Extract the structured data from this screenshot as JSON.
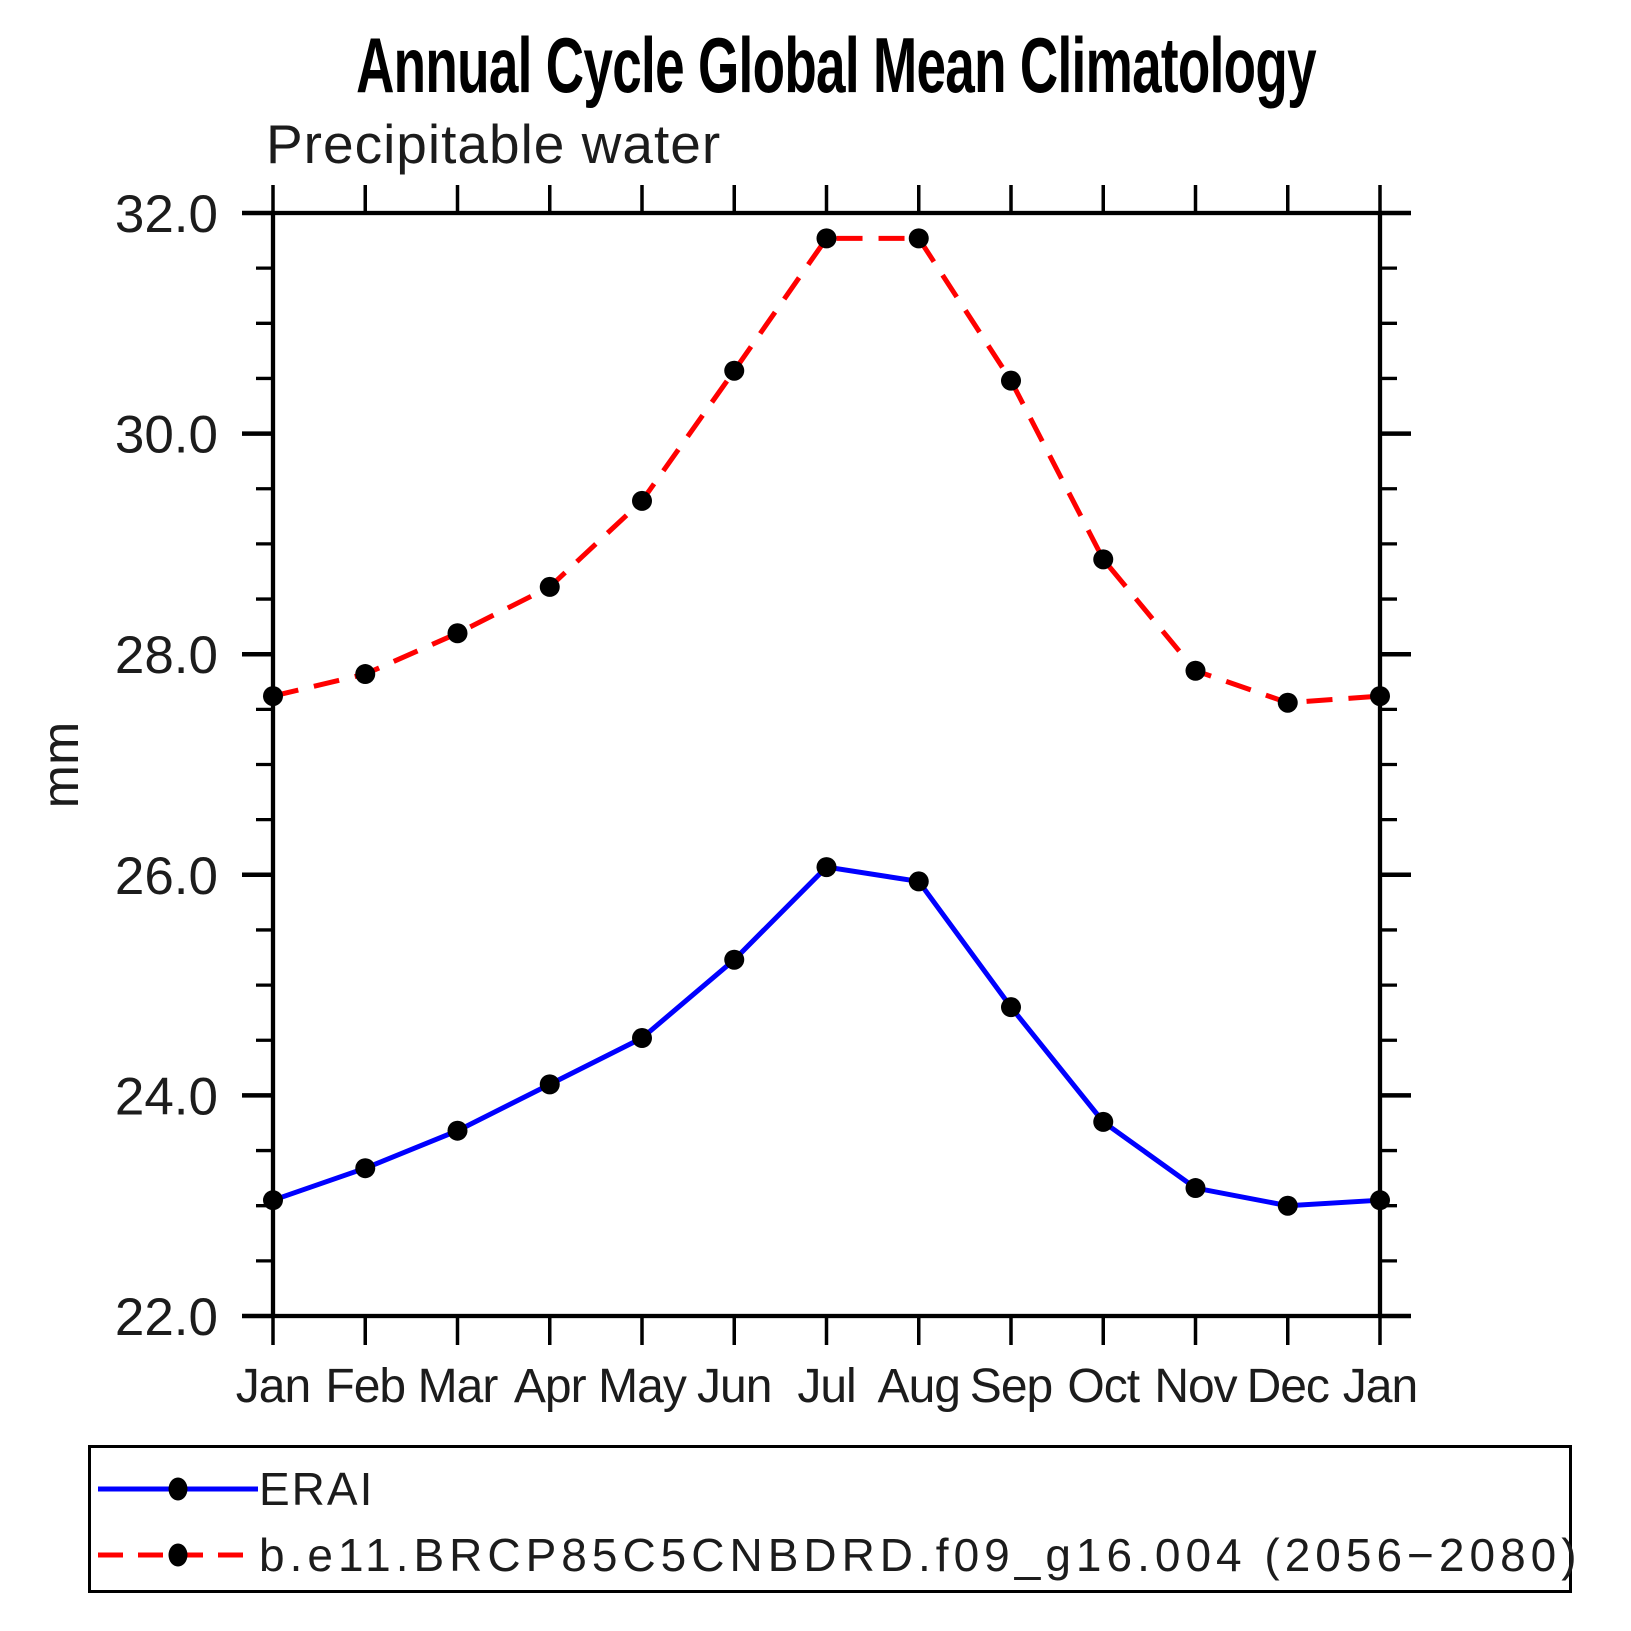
{
  "page": {
    "background": "#ffffff"
  },
  "chart_data": {
    "type": "line",
    "title": "Annual Cycle Global Mean Climatology",
    "subtitle": "Precipitable water",
    "xlabel": "",
    "ylabel": "mm",
    "ylim": [
      22.0,
      32.0
    ],
    "y_major_ticks": [
      22.0,
      24.0,
      26.0,
      28.0,
      30.0,
      32.0
    ],
    "y_tick_labels": [
      "22.0",
      "24.0",
      "26.0",
      "28.0",
      "30.0",
      "32.0"
    ],
    "y_minor_step": 0.5,
    "x_tick_labels": [
      "Jan",
      "Feb",
      "Mar",
      "Apr",
      "May",
      "Jun",
      "Jul",
      "Aug",
      "Sep",
      "Oct",
      "Nov",
      "Dec",
      "Jan"
    ],
    "grid": false,
    "axis_color": "#000000",
    "legend_position": "bottom-left-box",
    "series": [
      {
        "name": "ERAI",
        "color": "#0000ff",
        "line_style": "solid",
        "marker": "filled-circle",
        "marker_color": "#000000",
        "values": [
          23.05,
          23.34,
          23.68,
          24.1,
          24.52,
          25.23,
          26.07,
          25.94,
          24.8,
          23.76,
          23.16,
          23.0,
          23.05
        ]
      },
      {
        "name": "b.e11.BRCP85C5CNBDRD.f09_g16.004 (2056−2080)",
        "color": "#ff0000",
        "line_style": "dashed",
        "marker": "filled-circle",
        "marker_color": "#000000",
        "values": [
          27.62,
          27.82,
          28.19,
          28.61,
          29.39,
          30.57,
          31.77,
          31.77,
          30.48,
          28.86,
          27.85,
          27.56,
          27.62
        ]
      }
    ]
  }
}
